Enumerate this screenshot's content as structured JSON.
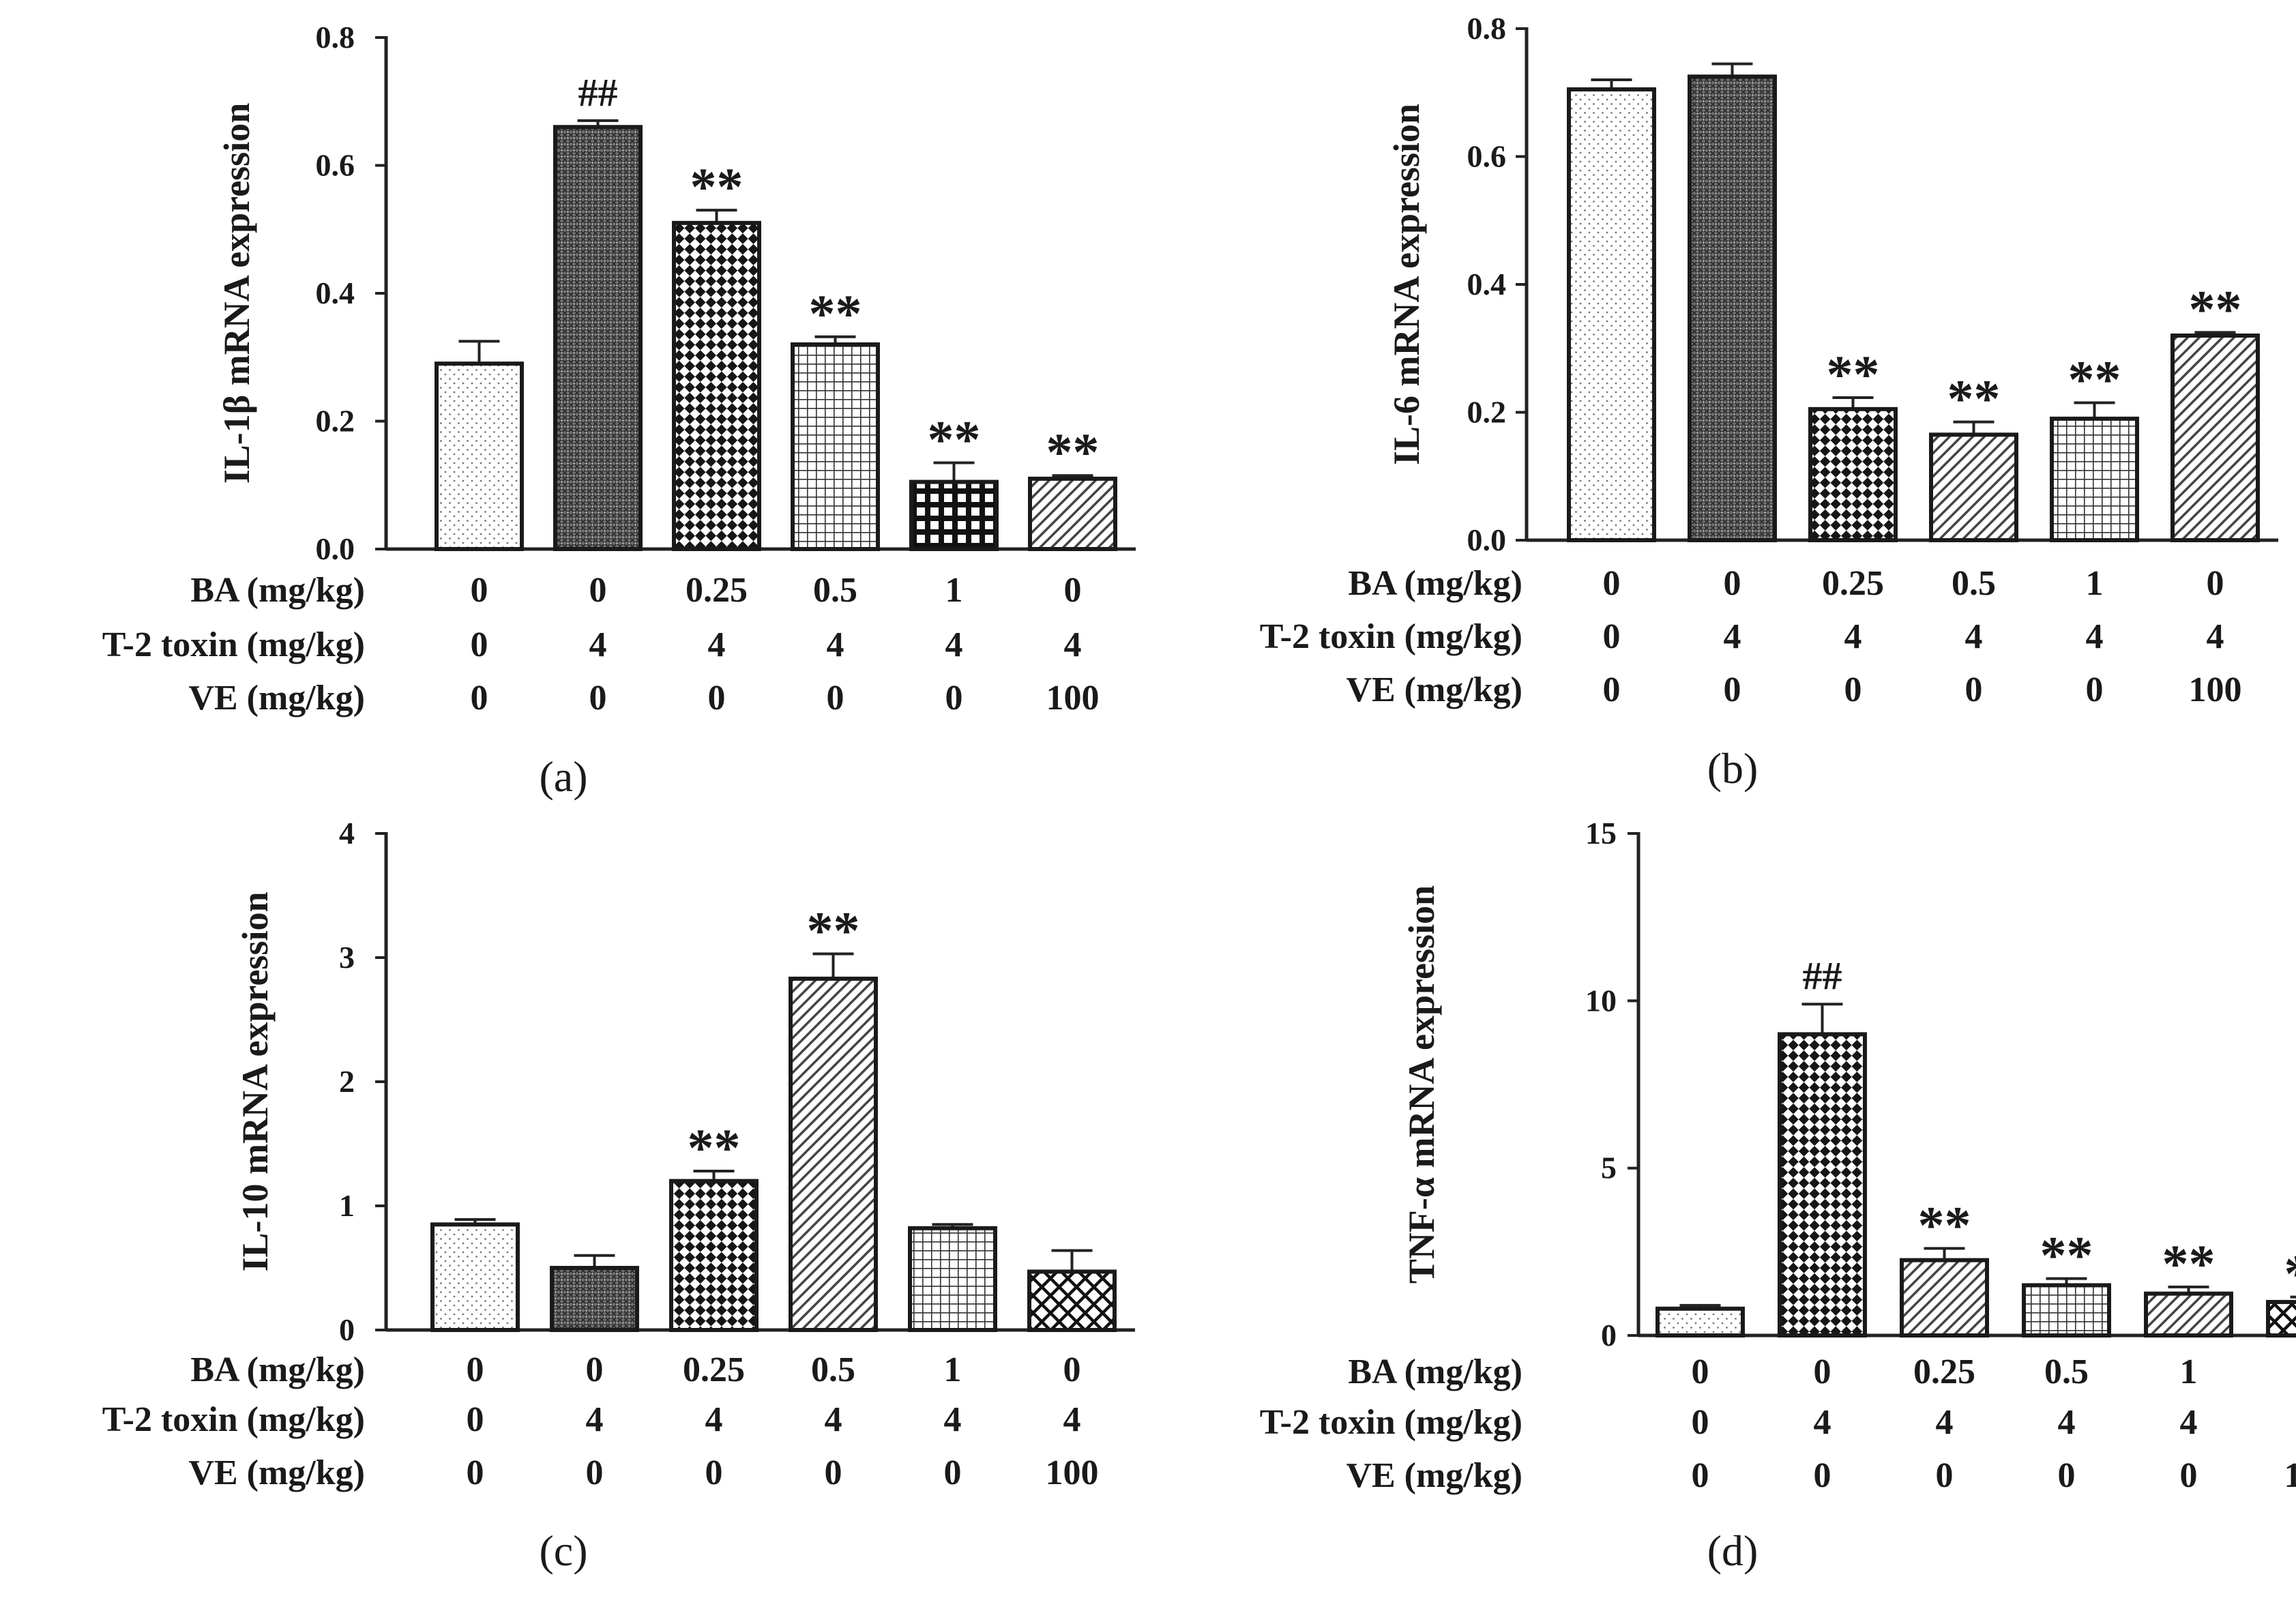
{
  "figure": {
    "condition_rows": [
      "BA (mg/kg)",
      "T-2 toxin (mg/kg)",
      "VE (mg/kg)"
    ],
    "conditions": [
      [
        "0",
        "0",
        "0.25",
        "0.5",
        "1",
        "0"
      ],
      [
        "0",
        "4",
        "4",
        "4",
        "4",
        "4"
      ],
      [
        "0",
        "0",
        "0",
        "0",
        "0",
        "100"
      ]
    ]
  },
  "chart_data": [
    {
      "type": "bar",
      "panel_label": "(a)",
      "ylabel": "IL-1β mRNA expression",
      "ylim": [
        0,
        0.8
      ],
      "yticks": [
        "0.0",
        "0.2",
        "0.4",
        "0.6",
        "0.8"
      ],
      "values": [
        0.29,
        0.66,
        0.51,
        0.32,
        0.105,
        0.11
      ],
      "errors": [
        0.035,
        0.01,
        0.02,
        0.012,
        0.03,
        0.005
      ],
      "significance": [
        "",
        "##",
        "**",
        "**",
        "**",
        "**"
      ],
      "patterns": [
        "dots",
        "dense",
        "checker",
        "grid",
        "bold-grid",
        "diag"
      ]
    },
    {
      "type": "bar",
      "panel_label": "(b)",
      "ylabel": "IL-6 mRNA expression",
      "ylim": [
        0,
        0.8
      ],
      "yticks": [
        "0.0",
        "0.2",
        "0.4",
        "0.6",
        "0.8"
      ],
      "values": [
        0.705,
        0.725,
        0.205,
        0.165,
        0.19,
        0.32
      ],
      "errors": [
        0.015,
        0.02,
        0.018,
        0.02,
        0.025,
        0.005
      ],
      "significance": [
        "",
        "",
        "**",
        "**",
        "**",
        "**"
      ],
      "patterns": [
        "dots",
        "dense",
        "checker",
        "diag",
        "grid",
        "diag"
      ]
    },
    {
      "type": "bar",
      "panel_label": "(c)",
      "ylabel": "IL-10 mRNA expression",
      "ylim": [
        0,
        4
      ],
      "yticks": [
        "0",
        "1",
        "2",
        "3",
        "4"
      ],
      "values": [
        0.85,
        0.5,
        1.2,
        2.83,
        0.82,
        0.47
      ],
      "errors": [
        0.04,
        0.1,
        0.08,
        0.2,
        0.03,
        0.17
      ],
      "significance": [
        "",
        "",
        "**",
        "**",
        "",
        ""
      ],
      "patterns": [
        "dots",
        "dense",
        "checker",
        "diag",
        "grid",
        "crosshatch"
      ]
    },
    {
      "type": "bar",
      "panel_label": "(d)",
      "ylabel": "TNF-α mRNA expression",
      "ylim": [
        0,
        15
      ],
      "yticks": [
        "0",
        "5",
        "10",
        "15"
      ],
      "values": [
        0.8,
        9.0,
        2.25,
        1.5,
        1.25,
        1.0
      ],
      "errors": [
        0.1,
        0.9,
        0.35,
        0.2,
        0.2,
        0.15
      ],
      "significance": [
        "",
        "##",
        "**",
        "**",
        "**",
        "**"
      ],
      "patterns": [
        "dots",
        "checker",
        "diag",
        "grid",
        "diag",
        "crosshatch"
      ]
    }
  ]
}
